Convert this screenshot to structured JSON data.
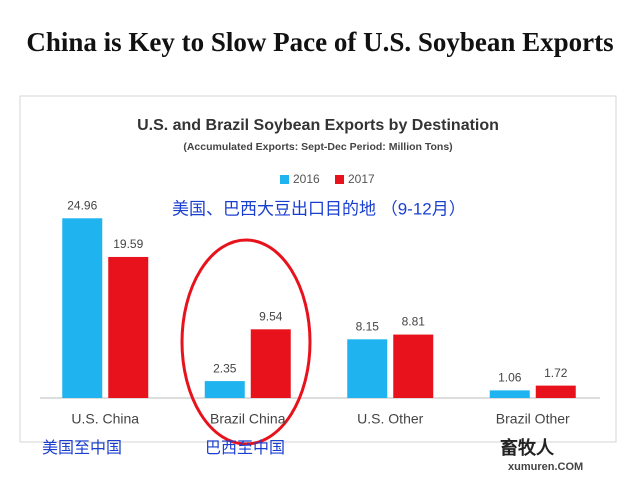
{
  "headline": "China is Key to Slow Pace of U.S. Soybean Exports",
  "chart_data": {
    "type": "bar",
    "title": "U.S. and Brazil Soybean Exports by Destination",
    "subtitle": "(Accumulated Exports: Sept-Dec Period: Million Tons)",
    "annotation": "美国、巴西大豆出口目的地 （9-12月）",
    "categories": [
      "U.S. China",
      "Brazil China",
      "U.S. Other",
      "Brazil Other"
    ],
    "series": [
      {
        "name": "2016",
        "color": "#1fb4ef",
        "values": [
          24.96,
          2.35,
          8.15,
          1.06
        ]
      },
      {
        "name": "2017",
        "color": "#e8121c",
        "values": [
          19.59,
          9.54,
          8.81,
          1.72
        ]
      }
    ],
    "ylim": [
      0,
      25
    ]
  },
  "annotations": [
    "美国至中国",
    "巴西至中国"
  ],
  "watermark": [
    "畜牧人",
    "xumuren.COM"
  ]
}
